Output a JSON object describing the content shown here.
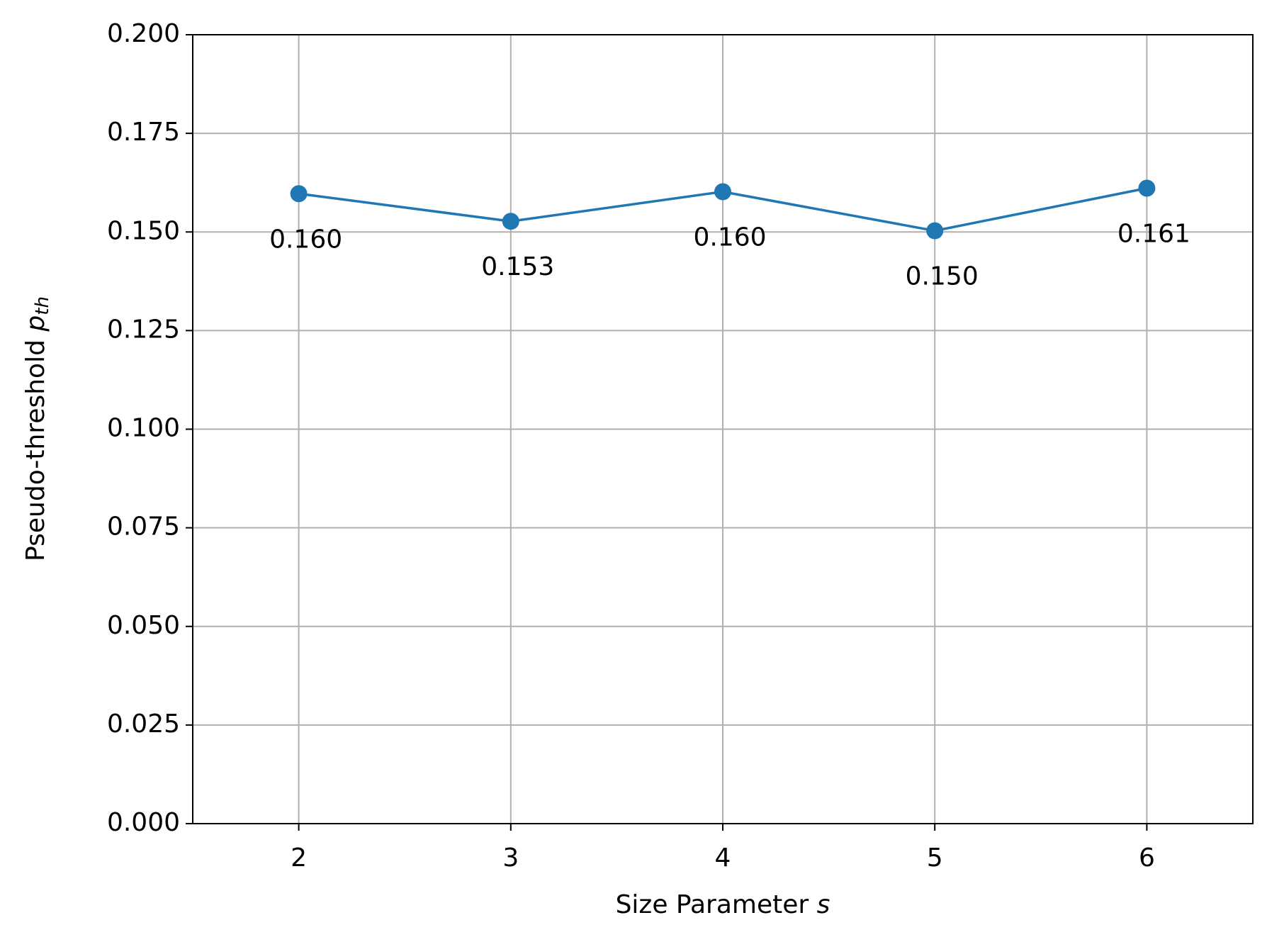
{
  "chart_data": {
    "type": "line",
    "xlabel": "Size Parameter",
    "xlabel_symbol": "s",
    "ylabel": "Pseudo-threshold",
    "ylabel_symbol": "p",
    "ylabel_subscript": "th",
    "x": [
      2,
      3,
      4,
      5,
      6
    ],
    "series": [
      {
        "color": "#1f77b4",
        "values": [
          0.1597,
          0.1527,
          0.1602,
          0.1503,
          0.1611
        ],
        "value_labels": [
          "0.160",
          "0.153",
          "0.160",
          "0.150",
          "0.161"
        ]
      }
    ],
    "xlim": [
      1.5,
      6.5
    ],
    "xticks": [
      2,
      3,
      4,
      5,
      6
    ],
    "ylim": [
      0,
      0.2
    ],
    "yticks": [
      {
        "value": 0,
        "label": "0.000"
      },
      0.025,
      {
        "value": 0.05,
        "label": "0.050"
      },
      0.075,
      {
        "value": 0.1,
        "label": "0.100"
      },
      0.125,
      {
        "value": 0.15,
        "label": "0.150"
      },
      0.175,
      {
        "value": 0.2,
        "label": "0.200"
      }
    ],
    "grid": true
  }
}
